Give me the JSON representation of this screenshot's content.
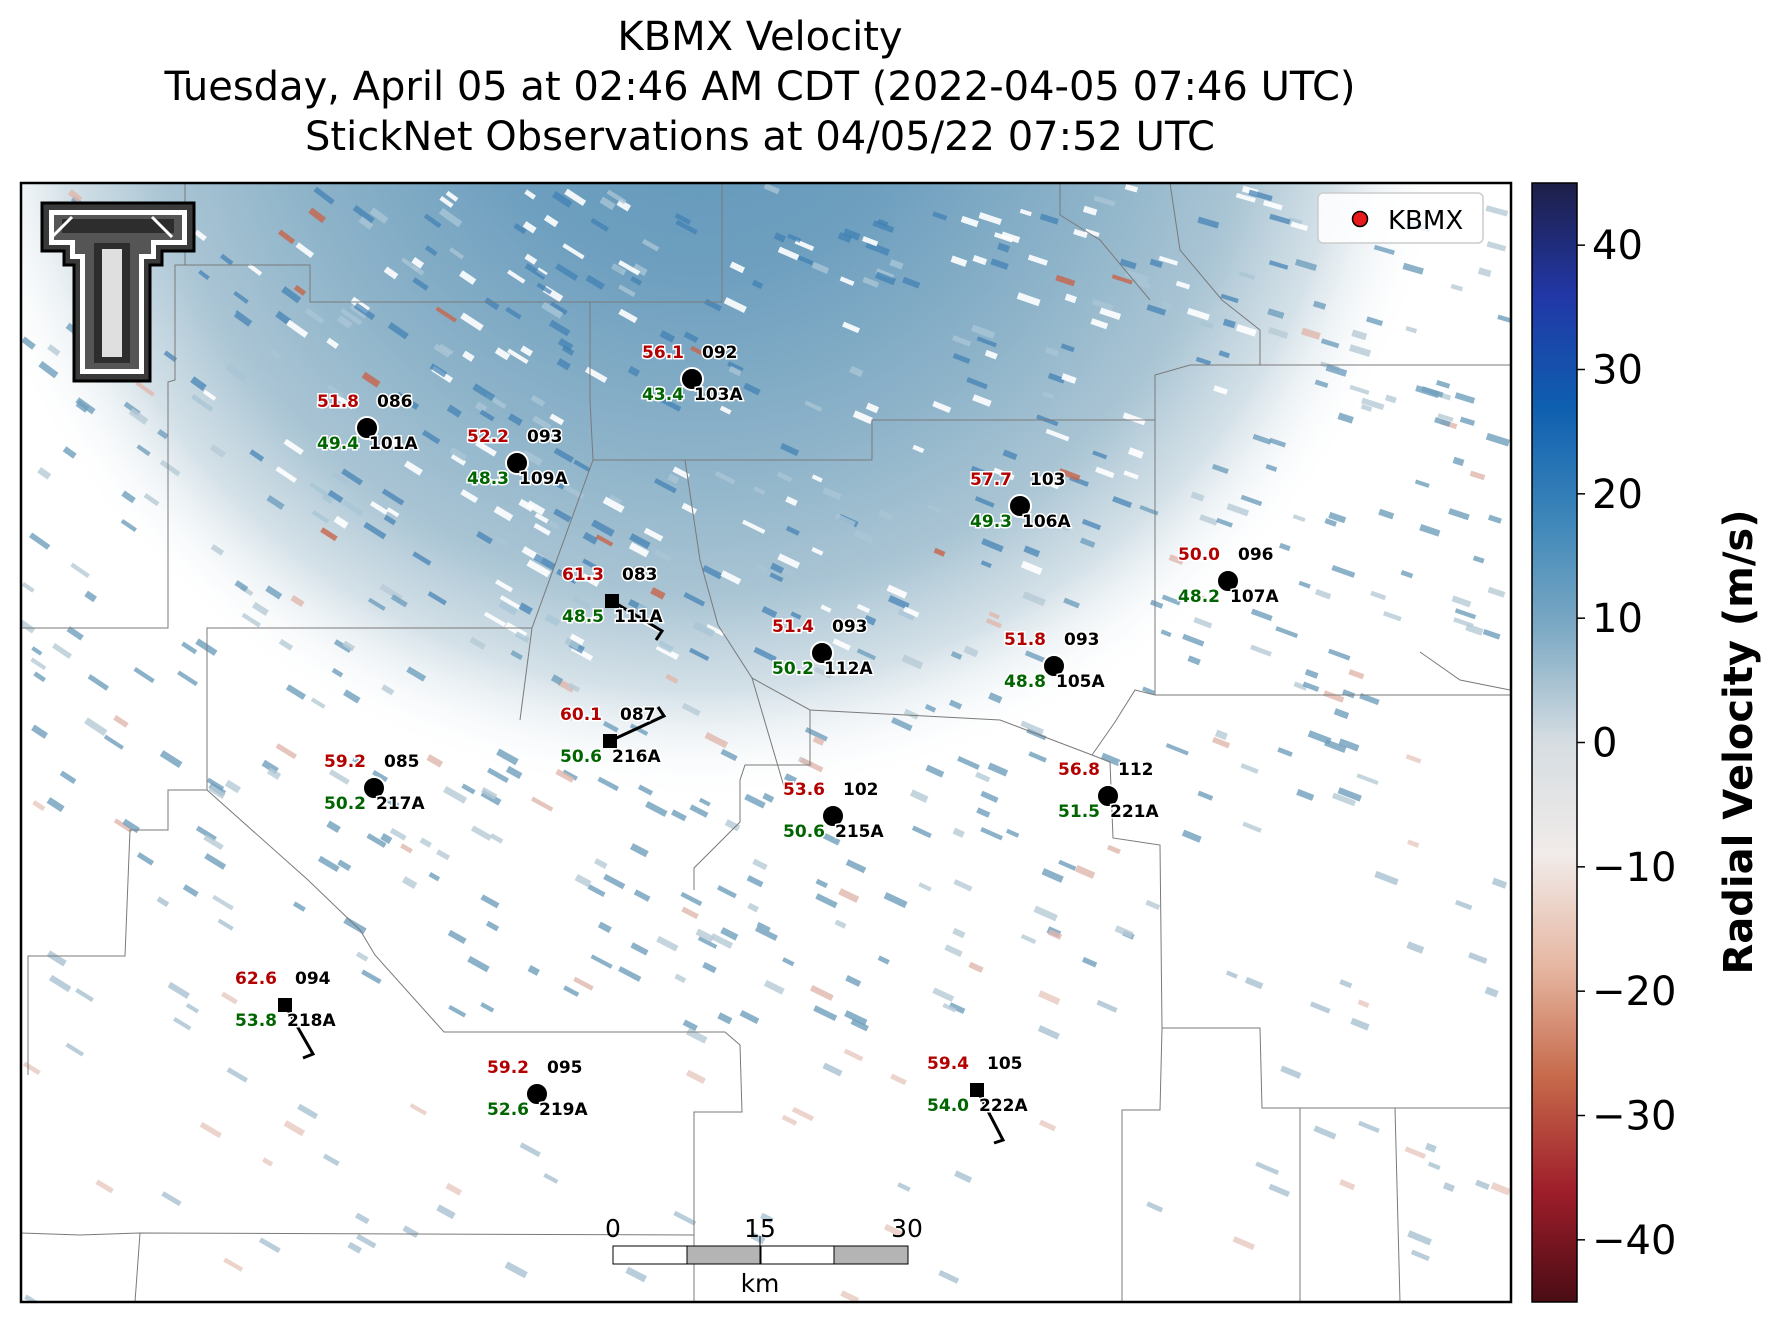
{
  "title": {
    "line1": "KBMX Velocity",
    "line2": "Tuesday, April 05 at 02:46 AM CDT (2022-04-05 07:46 UTC)",
    "line3": "StickNet Observations at 04/05/22 07:52 UTC"
  },
  "logo": {
    "name": "Texas Tech double-T logo"
  },
  "legend": {
    "label": "KBMX",
    "marker_color": "#e8191a"
  },
  "colorbar": {
    "title": "Radial Velocity (m/s)",
    "ticks": [
      "40",
      "30",
      "20",
      "10",
      "0",
      "−10",
      "−20",
      "−30",
      "−40"
    ],
    "tick_values": [
      40,
      30,
      20,
      10,
      0,
      -10,
      -20,
      -30,
      -40
    ],
    "range": [
      -45,
      45
    ],
    "colors": [
      "#1e1f48",
      "#2237a6",
      "#0e5fb0",
      "#3d86b9",
      "#7eaac4",
      "#d6dde2",
      "#f1ebe9",
      "#e6b7a2",
      "#c6694a",
      "#9f1e2b",
      "#4a0c14"
    ]
  },
  "scale_bar": {
    "labels": [
      "0",
      "15",
      "30"
    ],
    "unit": "km"
  },
  "stations": [
    {
      "id": "101A",
      "value_red": "51.8",
      "value_black": "086",
      "value_green": "49.4",
      "marker": "circle"
    },
    {
      "id": "109A",
      "value_red": "52.2",
      "value_black": "093",
      "value_green": "48.3",
      "marker": "circle"
    },
    {
      "id": "103A",
      "value_red": "56.1",
      "value_black": "092",
      "value_green": "43.4",
      "marker": "circle"
    },
    {
      "id": "106A",
      "value_red": "57.7",
      "value_black": "103",
      "value_green": "49.3",
      "marker": "circle"
    },
    {
      "id": "107A",
      "value_red": "50.0",
      "value_black": "096",
      "value_green": "48.2",
      "marker": "circle"
    },
    {
      "id": "111A",
      "value_red": "61.3",
      "value_black": "083",
      "value_green": "48.5",
      "marker": "square"
    },
    {
      "id": "112A",
      "value_red": "51.4",
      "value_black": "093",
      "value_green": "50.2",
      "marker": "circle"
    },
    {
      "id": "105A",
      "value_red": "51.8",
      "value_black": "093",
      "value_green": "48.8",
      "marker": "circle"
    },
    {
      "id": "216A",
      "value_red": "60.1",
      "value_black": "087",
      "value_green": "50.6",
      "marker": "square"
    },
    {
      "id": "217A",
      "value_red": "59.2",
      "value_black": "085",
      "value_green": "50.2",
      "marker": "circle"
    },
    {
      "id": "215A",
      "value_red": "53.6",
      "value_black": "102",
      "value_green": "50.6",
      "marker": "circle"
    },
    {
      "id": "221A",
      "value_red": "56.8",
      "value_black": "112",
      "value_green": "51.5",
      "marker": "circle"
    },
    {
      "id": "218A",
      "value_red": "62.6",
      "value_black": "094",
      "value_green": "53.8",
      "marker": "square"
    },
    {
      "id": "219A",
      "value_red": "59.2",
      "value_black": "095",
      "value_green": "52.6",
      "marker": "circle"
    },
    {
      "id": "222A",
      "value_red": "59.4",
      "value_black": "105",
      "value_green": "54.0",
      "marker": "square"
    }
  ],
  "colors": {
    "red_label": "#b30000",
    "green_label": "#006400",
    "black_label": "#000000"
  }
}
